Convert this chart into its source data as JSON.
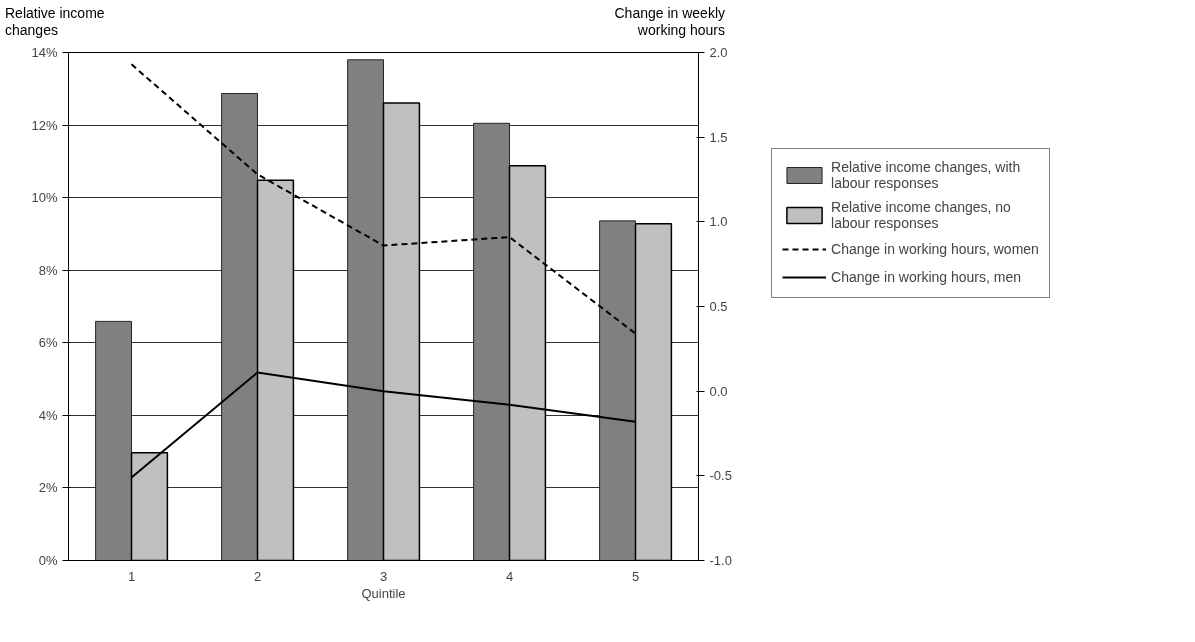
{
  "chart_data": {
    "type": "bar",
    "xlabel": "Quintile",
    "ylabel": "Relative income changes",
    "y2label": "Change in weekly working hours",
    "categories": [
      "1",
      "2",
      "3",
      "4",
      "5"
    ],
    "series": [
      {
        "name": "Relative income changes, with labour responses",
        "color": "#808080",
        "values": [
          6.59,
          12.87,
          13.8,
          12.05,
          9.36
        ]
      },
      {
        "name": "Relative income changes, no labour responses",
        "color": "#c0c0c0",
        "values": [
          2.97,
          10.48,
          12.61,
          10.88,
          9.28
        ]
      },
      {
        "name": "Change in working hours, women",
        "type": "line",
        "axis": "y2",
        "color": "#000000",
        "line_style": "dashed",
        "values": [
          1.93,
          1.28,
          0.86,
          0.91,
          0.34
        ]
      },
      {
        "name": "Change in working hours, men",
        "type": "line",
        "axis": "y2",
        "color": "#000000",
        "line_style": "solid",
        "values": [
          -0.51,
          0.11,
          0.0,
          -0.08,
          -0.18
        ]
      }
    ],
    "ylim": [
      0,
      14
    ],
    "yticks": [
      {
        "value": 0,
        "label": "0%"
      },
      {
        "value": 2,
        "label": "2%"
      },
      {
        "value": 4,
        "label": "4%"
      },
      {
        "value": 6,
        "label": "6%"
      },
      {
        "value": 8,
        "label": "8%"
      },
      {
        "value": 10,
        "label": "10%"
      },
      {
        "value": 12,
        "label": "12%"
      },
      {
        "value": 14,
        "label": "14%"
      }
    ],
    "y2lim": [
      -1.0,
      2.0
    ],
    "y2ticks": [
      {
        "value": -1,
        "label": "-1.0"
      },
      {
        "value": -0.5,
        "label": "-0.5"
      },
      {
        "value": 0,
        "label": "0.0"
      },
      {
        "value": 0.5,
        "label": "0.5"
      },
      {
        "value": 1,
        "label": "1.0"
      },
      {
        "value": 1.5,
        "label": "1.5"
      },
      {
        "value": 2,
        "label": "2.0"
      }
    ],
    "grid": "y",
    "legend": "right",
    "marker": "none"
  }
}
